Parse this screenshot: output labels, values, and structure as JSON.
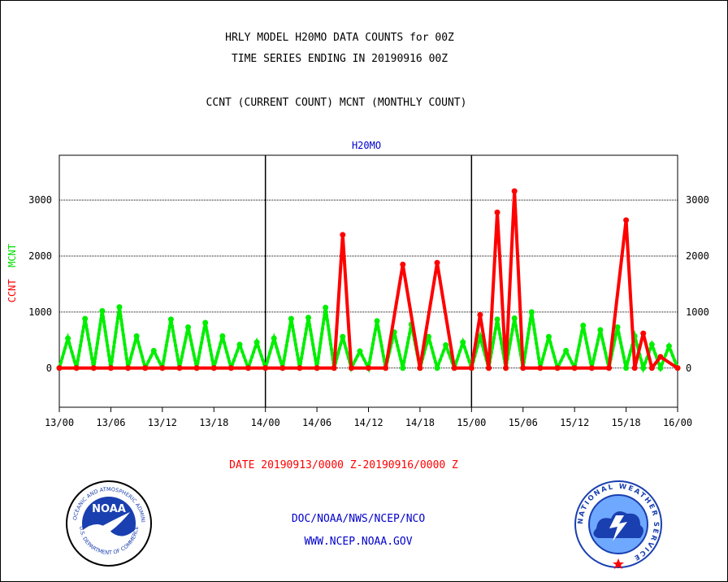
{
  "header": {
    "title_line1": "HRLY MODEL H20MO DATA COUNTS for 00Z",
    "title_line2": "TIME SERIES ENDING IN 20190916 00Z",
    "subtitle": "CCNT (CURRENT COUNT) MCNT (MONTHLY COUNT)"
  },
  "footer": {
    "date_range": "DATE 20190913/0000 Z-20190916/0000 Z",
    "credit_org": "DOC/NOAA/NWS/NCEP/NCO",
    "credit_url": "WWW.NCEP.NOAA.GOV"
  },
  "logos": {
    "noaa_text": "NOAA",
    "noaa_ring_top": "NATIONAL OCEANIC AND ATMOSPHERIC ADMINISTRATION",
    "noaa_ring_bottom": "U.S. DEPARTMENT OF COMMERCE",
    "nws_ring": "NATIONAL WEATHER SERVICE"
  },
  "chart_data": {
    "type": "line",
    "title": "H20MO",
    "ylabel_parts": [
      "CCNT",
      "MCNT"
    ],
    "ylim": [
      -700,
      3800
    ],
    "xlim": [
      0,
      72
    ],
    "yticks": [
      0,
      1000,
      2000,
      3000
    ],
    "xtick_labels": [
      "13/00",
      "13/06",
      "13/12",
      "13/18",
      "14/00",
      "14/06",
      "14/12",
      "14/18",
      "15/00",
      "15/06",
      "15/12",
      "15/18",
      "16/00"
    ],
    "day_dividers_hours": [
      24,
      48
    ],
    "colors": {
      "ccnt": "#ff0000",
      "mcnt": "#00ee00",
      "title": "#0000cc"
    },
    "series": [
      {
        "name": "CCNT",
        "x": [
          0,
          2,
          4,
          6,
          8,
          10,
          12,
          14,
          16,
          18,
          20,
          22,
          24,
          26,
          28,
          30,
          32,
          33,
          34,
          36,
          38,
          40,
          42,
          44,
          46,
          48,
          49,
          50,
          51,
          52,
          53,
          54,
          56,
          58,
          60,
          62,
          64,
          66,
          67,
          68,
          69,
          70,
          72
        ],
        "values": [
          0,
          0,
          0,
          0,
          0,
          0,
          0,
          0,
          0,
          0,
          0,
          0,
          0,
          0,
          0,
          0,
          0,
          2380,
          0,
          0,
          0,
          1850,
          0,
          1880,
          0,
          0,
          950,
          0,
          2780,
          0,
          3160,
          0,
          0,
          0,
          0,
          0,
          0,
          2640,
          0,
          620,
          0,
          200,
          0
        ]
      },
      {
        "name": "MCNT",
        "x": [
          0,
          1,
          2,
          3,
          4,
          5,
          6,
          7,
          8,
          9,
          10,
          11,
          12,
          13,
          14,
          15,
          16,
          17,
          18,
          19,
          20,
          21,
          22,
          23,
          24,
          25,
          26,
          27,
          28,
          29,
          30,
          31,
          32,
          33,
          34,
          35,
          36,
          37,
          38,
          39,
          40,
          41,
          42,
          43,
          44,
          45,
          46,
          47,
          48,
          49,
          50,
          51,
          52,
          53,
          54,
          55,
          56,
          57,
          58,
          59,
          60,
          61,
          62,
          63,
          64,
          65,
          66,
          67,
          68,
          69,
          70,
          71,
          72
        ],
        "values": [
          0,
          530,
          0,
          880,
          0,
          1020,
          0,
          1090,
          0,
          570,
          0,
          310,
          0,
          870,
          0,
          730,
          0,
          810,
          0,
          570,
          0,
          420,
          0,
          460,
          0,
          530,
          0,
          880,
          0,
          900,
          0,
          1080,
          0,
          560,
          0,
          300,
          0,
          840,
          0,
          640,
          0,
          780,
          0,
          560,
          0,
          410,
          0,
          460,
          0,
          560,
          0,
          870,
          0,
          890,
          0,
          1000,
          0,
          560,
          0,
          310,
          0,
          760,
          0,
          680,
          0,
          730,
          0,
          570,
          0,
          420,
          0,
          390,
          0
        ]
      }
    ]
  }
}
